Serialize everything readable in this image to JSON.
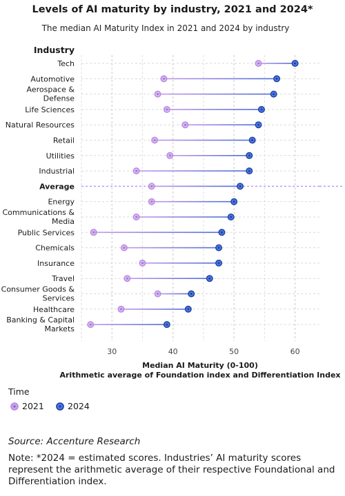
{
  "title": "Levels of AI maturity by industry, 2021 and 2024*",
  "subtitle": "The median AI Maturity Index in 2021 and 2024 by industry",
  "legend": {
    "title": "Time",
    "items": [
      {
        "label": "2021",
        "color": "#c9a2ec",
        "stroke": "#b68ae0"
      },
      {
        "label": "2024",
        "color": "#4e79ea",
        "stroke": "#1f3f9a"
      }
    ]
  },
  "source": "Source: Accenture Research",
  "note": "Note: *2024 = estimated scores. Industries’ AI maturity scores represent the arithmetic average of their respective Foundational and Differentiation index.",
  "chart_data": {
    "type": "dumbbell",
    "title": "Levels of AI maturity by industry, 2021 and 2024*",
    "subtitle": "The median AI Maturity Index in 2021 and 2024 by industry",
    "y_axis_title": "Industry",
    "xlabel": "Median AI Maturity (0-100)",
    "xlabel_sub": "Arithmetic average of Foundation index and Differentiation Index",
    "xlim": [
      25,
      64
    ],
    "xticks": [
      30,
      40,
      50,
      60
    ],
    "grid": true,
    "legend_position": "bottom-left",
    "series": [
      {
        "name": "2021",
        "color": "#c9a2ec"
      },
      {
        "name": "2024",
        "color": "#4e79ea"
      }
    ],
    "rows": [
      {
        "label": [
          "Tech"
        ],
        "v2021": 54,
        "v2024": 60
      },
      {
        "label": [
          "Automotive"
        ],
        "v2021": 38.5,
        "v2024": 57
      },
      {
        "label": [
          "Aerospace &",
          "Defense"
        ],
        "v2021": 37.5,
        "v2024": 56.5
      },
      {
        "label": [
          "Life Sciences"
        ],
        "v2021": 39,
        "v2024": 54.5
      },
      {
        "label": [
          "Natural Resources"
        ],
        "v2021": 42,
        "v2024": 54
      },
      {
        "label": [
          "Retail"
        ],
        "v2021": 37,
        "v2024": 53
      },
      {
        "label": [
          "Utilities"
        ],
        "v2021": 39.5,
        "v2024": 52.5
      },
      {
        "label": [
          "Industrial"
        ],
        "v2021": 34,
        "v2024": 52.5
      },
      {
        "label": [
          "Average"
        ],
        "v2021": 36.5,
        "v2024": 51,
        "highlight": true
      },
      {
        "label": [
          "Energy"
        ],
        "v2021": 36.5,
        "v2024": 50
      },
      {
        "label": [
          "Communications &",
          "Media"
        ],
        "v2021": 34,
        "v2024": 49.5
      },
      {
        "label": [
          "Public Services"
        ],
        "v2021": 27,
        "v2024": 48
      },
      {
        "label": [
          "Chemicals"
        ],
        "v2021": 32,
        "v2024": 47.5
      },
      {
        "label": [
          "Insurance"
        ],
        "v2021": 35,
        "v2024": 47.5
      },
      {
        "label": [
          "Travel"
        ],
        "v2021": 32.5,
        "v2024": 46
      },
      {
        "label": [
          "Consumer Goods &",
          "Services"
        ],
        "v2021": 37.5,
        "v2024": 43
      },
      {
        "label": [
          "Healthcare"
        ],
        "v2021": 31.5,
        "v2024": 42.5
      },
      {
        "label": [
          "Banking & Capital",
          "Markets"
        ],
        "v2021": 26.5,
        "v2024": 39
      }
    ]
  }
}
